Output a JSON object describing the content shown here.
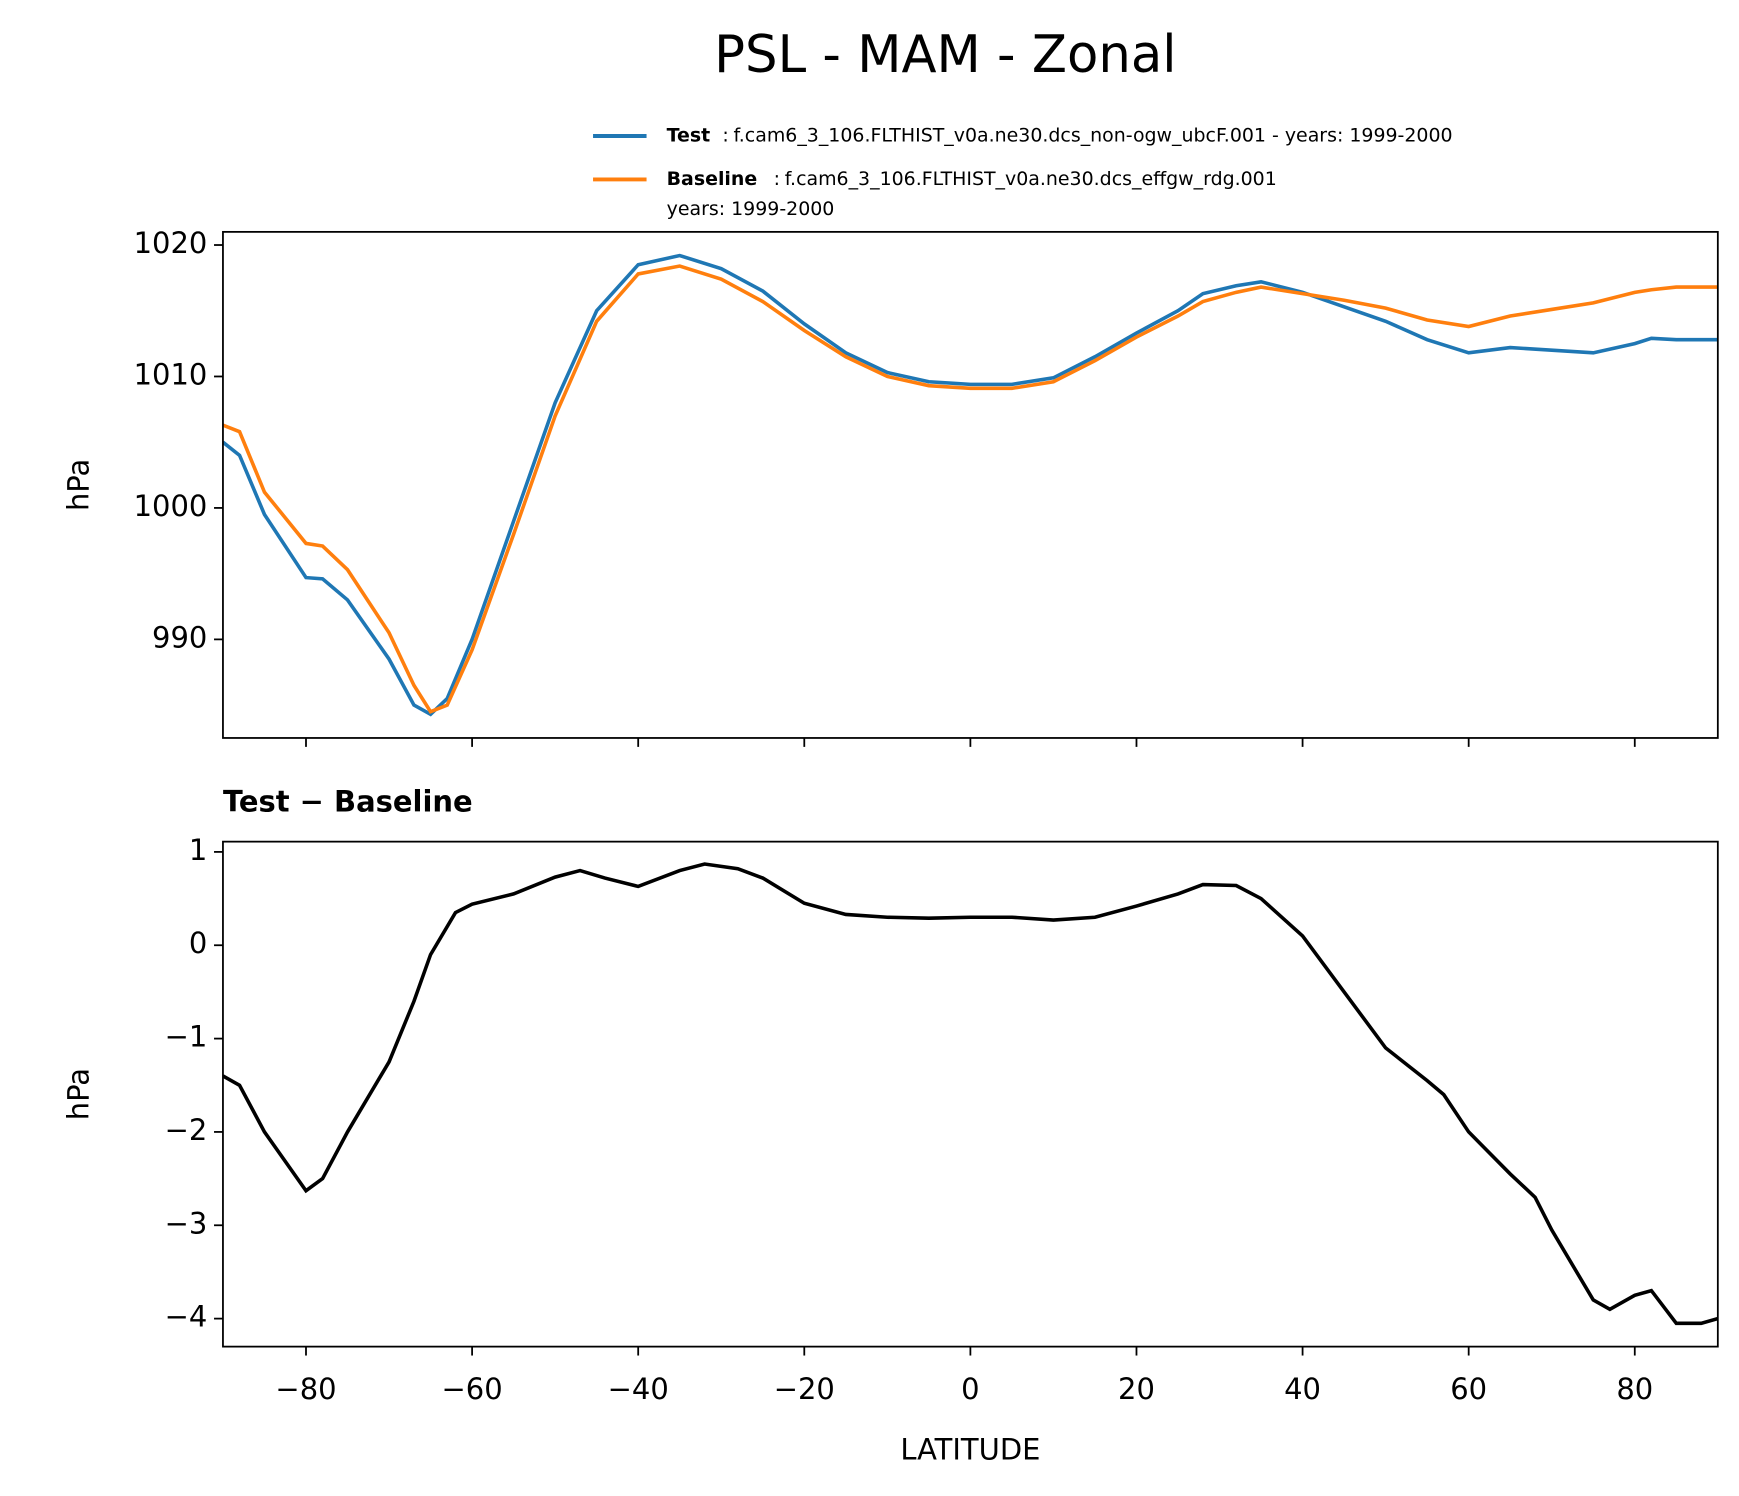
{
  "title": "PSL - MAM - Zonal",
  "chart_data": [
    {
      "type": "line",
      "ylabel": "hPa",
      "xlim": [
        -90,
        90
      ],
      "xticks": [
        {
          "value": -80,
          "label": "−80"
        },
        {
          "value": -60,
          "label": "−60"
        },
        {
          "value": -40,
          "label": "−40"
        },
        {
          "value": -20,
          "label": "−20"
        },
        0,
        20,
        40,
        60,
        80
      ],
      "xtick_labels": false,
      "ylim": [
        982.5,
        1021
      ],
      "yticks": [
        990,
        1000,
        1010,
        1020
      ],
      "legend": "upper right",
      "x": [
        -90,
        -88,
        -85,
        -80,
        -78,
        -75,
        -70,
        -67,
        -65,
        -63,
        -60,
        -55,
        -50,
        -45,
        -40,
        -35,
        -30,
        -25,
        -20,
        -15,
        -10,
        -5,
        0,
        5,
        10,
        15,
        20,
        25,
        28,
        32,
        35,
        40,
        45,
        50,
        55,
        60,
        65,
        70,
        75,
        80,
        82,
        85,
        90
      ],
      "series": [
        {
          "name": "Test",
          "description": [
            "f.cam6_3_106.FLTHIST_v0a.ne30.dcs_non-ogw_ubcF.001 - years: 1999-2000"
          ],
          "color": "#1f77b4",
          "values": [
            1005,
            1004,
            999.5,
            994.7,
            994.6,
            993,
            988.5,
            985,
            984.3,
            985.5,
            990,
            999,
            1008,
            1015,
            1018.5,
            1019.2,
            1018.2,
            1016.5,
            1014,
            1011.8,
            1010.3,
            1009.6,
            1009.4,
            1009.4,
            1009.9,
            1011.5,
            1013.3,
            1015,
            1016.3,
            1016.9,
            1017.2,
            1016.4,
            1015.3,
            1014.2,
            1012.8,
            1011.8,
            1012.2,
            1012,
            1011.8,
            1012.5,
            1012.9,
            1012.8,
            1012.8
          ]
        },
        {
          "name": "Baseline",
          "description": [
            "f.cam6_3_106.FLTHIST_v0a.ne30.dcs_effgw_rdg.001",
            "years: 1999-2000"
          ],
          "color": "#ff7f0e",
          "values": [
            1006.3,
            1005.8,
            1001.2,
            997.3,
            997.1,
            995.3,
            990.5,
            986.5,
            984.5,
            985,
            989.2,
            998,
            1007,
            1014.2,
            1017.8,
            1018.4,
            1017.4,
            1015.7,
            1013.5,
            1011.5,
            1010,
            1009.3,
            1009.1,
            1009.1,
            1009.6,
            1011.2,
            1013,
            1014.6,
            1015.7,
            1016.4,
            1016.8,
            1016.3,
            1015.8,
            1015.2,
            1014.3,
            1013.8,
            1014.6,
            1015.1,
            1015.6,
            1016.4,
            1016.6,
            1016.8,
            1016.8
          ]
        }
      ]
    },
    {
      "type": "line",
      "title": "Test − Baseline",
      "ylabel": "hPa",
      "xlabel": "LATITUDE",
      "xlim": [
        -90,
        90
      ],
      "xticks": [
        {
          "value": -80,
          "label": "−80"
        },
        {
          "value": -60,
          "label": "−60"
        },
        {
          "value": -40,
          "label": "−40"
        },
        {
          "value": -20,
          "label": "−20"
        },
        0,
        20,
        40,
        60,
        80
      ],
      "xtick_labels": true,
      "ylim": [
        -4.3,
        1.11
      ],
      "yticks": [
        {
          "value": -4,
          "label": "−4"
        },
        {
          "value": -3,
          "label": "−3"
        },
        {
          "value": -2,
          "label": "−2"
        },
        {
          "value": -1,
          "label": "−1"
        },
        0,
        1
      ],
      "x": [
        -90,
        -88,
        -85,
        -80,
        -78,
        -75,
        -70,
        -67,
        -65,
        -62,
        -60,
        -55,
        -50,
        -47,
        -44,
        -40,
        -35,
        -32,
        -28,
        -25,
        -20,
        -15,
        -10,
        -5,
        0,
        5,
        10,
        15,
        20,
        25,
        28,
        32,
        35,
        40,
        45,
        50,
        55,
        57,
        60,
        65,
        68,
        70,
        75,
        77,
        80,
        82,
        85,
        88,
        90
      ],
      "series": [
        {
          "color": "#000000",
          "values": [
            -1.4,
            -1.5,
            -2.0,
            -2.63,
            -2.5,
            -2.0,
            -1.25,
            -0.6,
            -0.1,
            0.35,
            0.44,
            0.55,
            0.73,
            0.8,
            0.72,
            0.63,
            0.8,
            0.87,
            0.82,
            0.72,
            0.45,
            0.33,
            0.3,
            0.29,
            0.3,
            0.3,
            0.27,
            0.3,
            0.42,
            0.55,
            0.65,
            0.64,
            0.5,
            0.1,
            -0.5,
            -1.1,
            -1.45,
            -1.6,
            -2.0,
            -2.45,
            -2.7,
            -3.05,
            -3.8,
            -3.9,
            -3.75,
            -3.7,
            -4.05,
            -4.05,
            -4.0
          ]
        }
      ]
    }
  ]
}
